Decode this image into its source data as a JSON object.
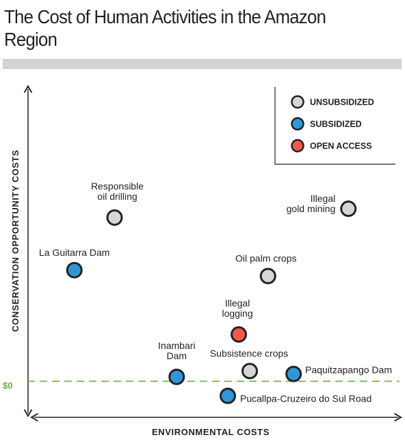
{
  "chart_data": {
    "type": "scatter",
    "title": "The Cost of Human Activities in the Amazon Region",
    "xlabel": "ENVIRONMENTAL COSTS",
    "ylabel": "CONSERVATION OPPORTUNITY COSTS",
    "reference_line": {
      "label": "$0",
      "y": 0,
      "color": "#6cae3e"
    },
    "legend": {
      "placement": "top-right",
      "entries": [
        {
          "key": "unsubsidized",
          "label": "UNSUBSIDIZED",
          "color": "#d6d6d6"
        },
        {
          "key": "subsidized",
          "label": "SUBSIDIZED",
          "color": "#2f96d8"
        },
        {
          "key": "open",
          "label": "OPEN ACCESS",
          "color": "#f05a4a"
        }
      ]
    },
    "grid": false,
    "xlim": [
      0,
      100
    ],
    "ylim": [
      -10,
      100
    ],
    "points": [
      {
        "label": [
          "Responsible",
          "oil drilling"
        ],
        "category": "unsubsidized",
        "x": 22,
        "y": 56
      },
      {
        "label": [
          "La Guitarra Dam"
        ],
        "category": "subsidized",
        "x": 11,
        "y": 38
      },
      {
        "label": [
          "Illegal",
          "gold mining"
        ],
        "category": "unsubsidized",
        "x": 86,
        "y": 59
      },
      {
        "label": [
          "Oil palm crops"
        ],
        "category": "unsubsidized",
        "x": 64,
        "y": 36
      },
      {
        "label": [
          "Illegal",
          "logging"
        ],
        "category": "open",
        "x": 56,
        "y": 16
      },
      {
        "label": [
          "Inambari",
          "Dam"
        ],
        "category": "subsidized",
        "x": 39,
        "y": 1.5
      },
      {
        "label": [
          "Subsistence crops"
        ],
        "category": "unsubsidized",
        "x": 59,
        "y": 3.5
      },
      {
        "label": [
          "Paquitzapango Dam"
        ],
        "category": "subsidized",
        "x": 71,
        "y": 2.5
      },
      {
        "label": [
          "Pucallpa-Cruzeiro do Sul Road"
        ],
        "category": "subsidized",
        "x": 53,
        "y": -5
      }
    ]
  }
}
